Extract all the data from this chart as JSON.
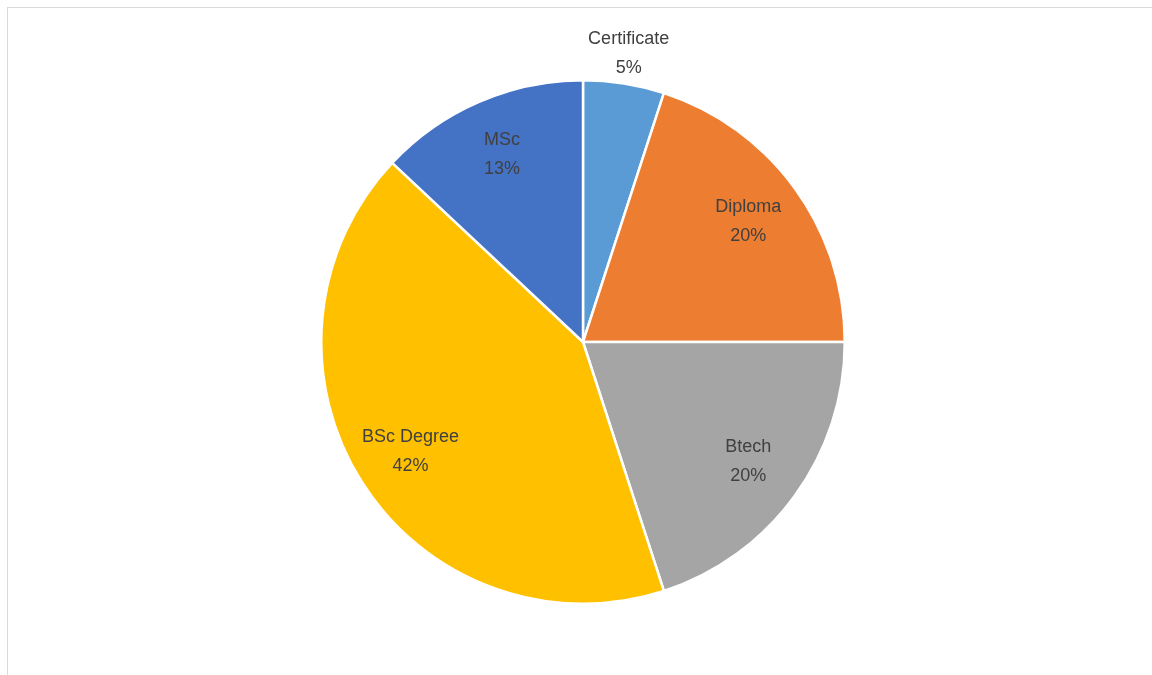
{
  "chart_data": {
    "type": "pie",
    "categories": [
      "Certificate",
      "Diploma",
      "Btech",
      "BSc Degree",
      "MSc"
    ],
    "values": [
      5,
      20,
      20,
      42,
      13
    ],
    "colors": [
      "#5b9bd5",
      "#ed7d31",
      "#a5a5a5",
      "#ffc000",
      "#4472c4"
    ],
    "value_labels": [
      "5%",
      "20%",
      "20%",
      "42%",
      "13%"
    ]
  }
}
